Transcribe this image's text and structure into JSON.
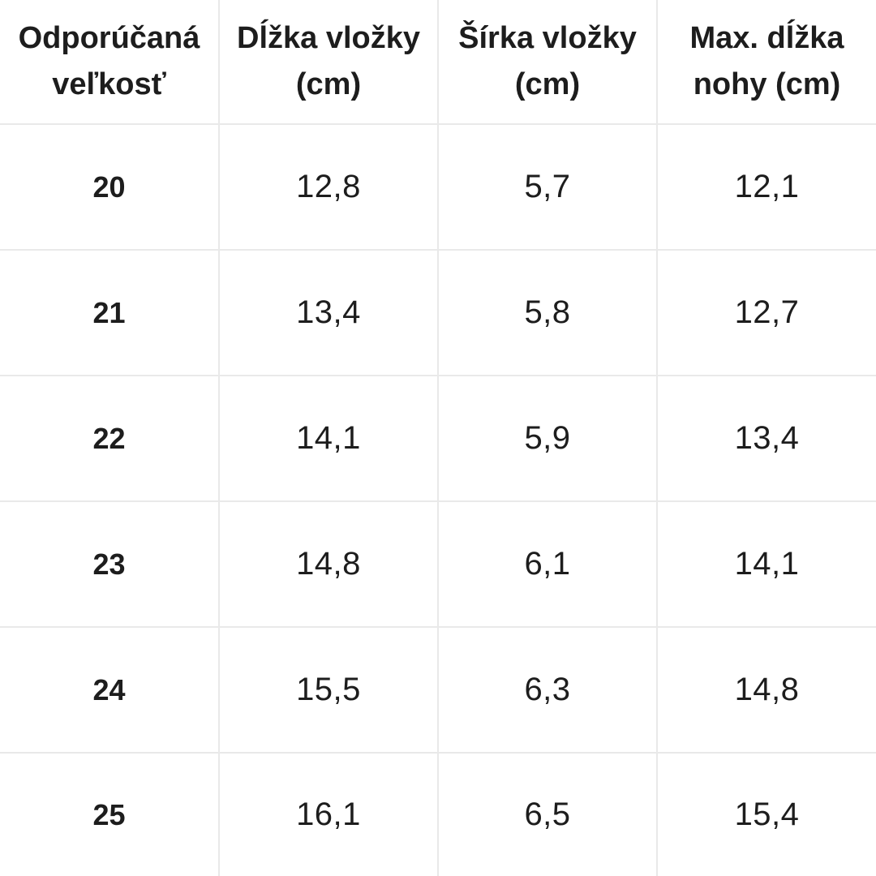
{
  "chart_data": {
    "type": "table",
    "columns": [
      "Odporúčaná veľkosť",
      "Dĺžka vložky (cm)",
      "Šírka vložky (cm)",
      "Max. dĺžka nohy (cm)"
    ],
    "rows": [
      [
        "20",
        "12,8",
        "5,7",
        "12,1"
      ],
      [
        "21",
        "13,4",
        "5,8",
        "12,7"
      ],
      [
        "22",
        "14,1",
        "5,9",
        "13,4"
      ],
      [
        "23",
        "14,8",
        "6,1",
        "14,1"
      ],
      [
        "24",
        "15,5",
        "6,3",
        "14,8"
      ],
      [
        "25",
        "16,1",
        "6,5",
        "15,4"
      ]
    ],
    "layout": {
      "grid": true,
      "header_row": true,
      "bold_first_column": true,
      "decimal_separator": ","
    }
  },
  "colors": {
    "background": "#ffffff",
    "grid_border": "#e9e9e9",
    "text": "#1d1d1d"
  }
}
